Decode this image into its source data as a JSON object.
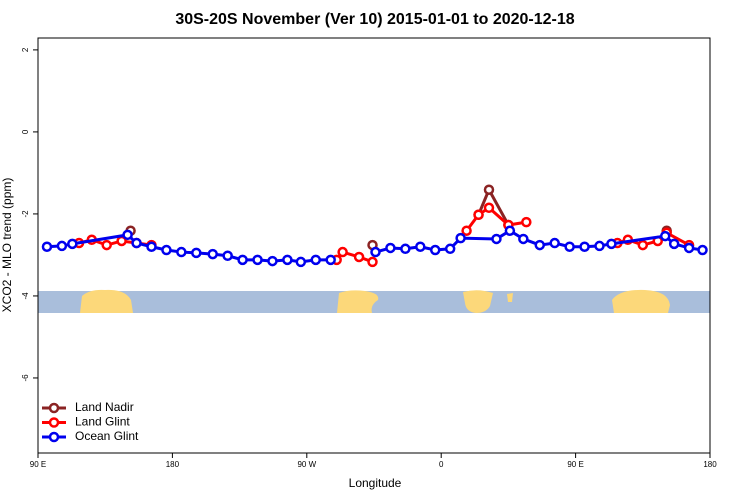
{
  "chart_data": {
    "type": "line",
    "title": "30S-20S November (Ver 10)   2015-01-01 to 2020-12-18",
    "x_label": "Longitude",
    "y_label": "XCO2 - MLO trend (ppm)",
    "xlim": [
      90,
      540
    ],
    "ylim": [
      -7.83,
      2.29
    ],
    "xticks": [
      {
        "value": 90,
        "label": "90 E"
      },
      180,
      {
        "value": 270,
        "label": "90 W"
      },
      {
        "value": 360,
        "label": "0"
      },
      {
        "value": 450,
        "label": "90 E"
      },
      {
        "value": 540,
        "label": "180"
      }
    ],
    "yticks": [
      2,
      0,
      -2,
      -4,
      -6
    ],
    "legend": "bottom-left",
    "series": [
      {
        "name": "Land Nadir",
        "color": "#8b2323",
        "x": [
          152,
          null,
          314,
          null,
          385,
          392,
          405,
          null,
          511
        ],
        "values": [
          -2.41,
          null,
          -2.76,
          null,
          -2.02,
          -1.41,
          -2.27,
          null,
          -2.41
        ]
      },
      {
        "name": "Land Glint",
        "color": "#ff0000",
        "x": [
          117.5,
          126,
          136,
          146,
          156,
          166,
          null,
          290,
          294,
          305,
          314,
          null,
          377,
          385,
          392,
          405,
          417,
          null,
          478,
          485,
          495,
          505,
          511,
          526
        ],
        "values": [
          -2.71,
          -2.63,
          -2.76,
          -2.66,
          -2.71,
          -2.76,
          null,
          -3.12,
          -2.93,
          -3.05,
          -3.17,
          null,
          -2.41,
          -2.02,
          -1.85,
          -2.27,
          -2.2,
          null,
          -2.71,
          -2.63,
          -2.76,
          -2.66,
          -2.46,
          -2.76
        ]
      },
      {
        "name": "Ocean Glint",
        "color": "#0000ee",
        "x": [
          96,
          106,
          113,
          150,
          156,
          166,
          176,
          186,
          196,
          207,
          217,
          227,
          237,
          247,
          257,
          266,
          276,
          286,
          null,
          316,
          326,
          336,
          346,
          356,
          366,
          373,
          397,
          406,
          415,
          426,
          436,
          446,
          456,
          466,
          474,
          510,
          516,
          526,
          535
        ],
        "values": [
          -2.8,
          -2.78,
          -2.73,
          -2.51,
          -2.71,
          -2.8,
          -2.88,
          -2.93,
          -2.95,
          -2.98,
          -3.02,
          -3.12,
          -3.12,
          -3.15,
          -3.12,
          -3.17,
          -3.12,
          -3.12,
          null,
          -2.93,
          -2.83,
          -2.85,
          -2.8,
          -2.88,
          -2.85,
          -2.59,
          -2.61,
          -2.41,
          -2.61,
          -2.76,
          -2.71,
          -2.8,
          -2.8,
          -2.78,
          -2.73,
          -2.54,
          -2.73,
          -2.83,
          -2.88
        ]
      }
    ]
  }
}
